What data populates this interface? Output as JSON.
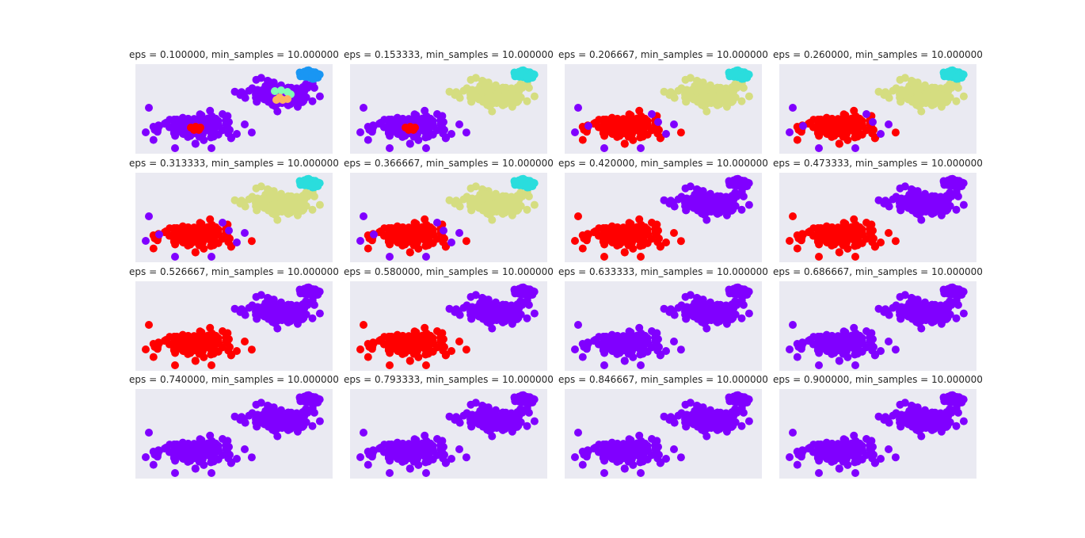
{
  "colors": {
    "background": "#ffffff",
    "panel_background": "#eaeaf2",
    "title_text": "#262626",
    "cluster_palette": [
      "#8000ff",
      "#ff0000",
      "#d5dd80",
      "#2adddd",
      "#80ffb4",
      "#ffb360",
      "#1996f3"
    ]
  },
  "chart_data": {
    "type": "scatter",
    "layout": "grid 4x4",
    "axes_visible": false,
    "grid": false,
    "legend": "none",
    "min_samples": 10,
    "panels": [
      {
        "title": "eps = 0.100000, min_samples = 10.000000",
        "eps": 0.1,
        "clusters": {
          "left_blob": "#8000ff",
          "left_core": "#ff0000",
          "right_blob": "#8000ff",
          "right_core_a": "#80ffb4",
          "right_core_b": "#ffb360",
          "top_right_cloud": "#1996f3"
        }
      },
      {
        "title": "eps = 0.153333, min_samples = 10.000000",
        "eps": 0.153333,
        "clusters": {
          "left_blob": "#8000ff",
          "left_core": "#ff0000",
          "right_blob": "#d5dd80",
          "top_right_cloud": "#2adddd"
        }
      },
      {
        "title": "eps = 0.206667, min_samples = 10.000000",
        "eps": 0.206667,
        "clusters": {
          "left_blob": "#ff0000",
          "left_outliers": "#8000ff",
          "right_blob": "#d5dd80",
          "top_right_cloud": "#2adddd"
        }
      },
      {
        "title": "eps = 0.260000, min_samples = 10.000000",
        "eps": 0.26,
        "clusters": {
          "left_blob": "#ff0000",
          "left_outliers": "#8000ff",
          "right_blob": "#d5dd80",
          "top_right_cloud": "#2adddd"
        }
      },
      {
        "title": "eps = 0.313333, min_samples = 10.000000",
        "eps": 0.313333,
        "clusters": {
          "left_blob": "#ff0000",
          "left_outliers": "#8000ff",
          "right_blob": "#d5dd80",
          "top_right_cloud": "#2adddd"
        }
      },
      {
        "title": "eps = 0.366667, min_samples = 10.000000",
        "eps": 0.366667,
        "clusters": {
          "left_blob": "#ff0000",
          "left_outliers": "#8000ff",
          "right_blob": "#d5dd80",
          "top_right_cloud": "#2adddd"
        }
      },
      {
        "title": "eps = 0.420000, min_samples = 10.000000",
        "eps": 0.42,
        "clusters": {
          "left_blob": "#ff0000",
          "right_blob": "#8000ff",
          "top_right_cloud": "#8000ff"
        }
      },
      {
        "title": "eps = 0.473333, min_samples = 10.000000",
        "eps": 0.473333,
        "clusters": {
          "left_blob": "#ff0000",
          "right_blob": "#8000ff",
          "top_right_cloud": "#8000ff"
        }
      },
      {
        "title": "eps = 0.526667, min_samples = 10.000000",
        "eps": 0.526667,
        "clusters": {
          "left_blob": "#ff0000",
          "right_blob": "#8000ff",
          "top_right_cloud": "#8000ff"
        }
      },
      {
        "title": "eps = 0.580000, min_samples = 10.000000",
        "eps": 0.58,
        "clusters": {
          "left_blob": "#ff0000",
          "right_blob": "#8000ff",
          "top_right_cloud": "#8000ff"
        }
      },
      {
        "title": "eps = 0.633333, min_samples = 10.000000",
        "eps": 0.633333,
        "clusters": {
          "left_blob": "#8000ff",
          "right_blob": "#8000ff",
          "top_right_cloud": "#8000ff"
        }
      },
      {
        "title": "eps = 0.686667, min_samples = 10.000000",
        "eps": 0.686667,
        "clusters": {
          "left_blob": "#8000ff",
          "right_blob": "#8000ff",
          "top_right_cloud": "#8000ff"
        }
      },
      {
        "title": "eps = 0.740000, min_samples = 10.000000",
        "eps": 0.74,
        "clusters": {
          "left_blob": "#8000ff",
          "right_blob": "#8000ff",
          "top_right_cloud": "#8000ff"
        }
      },
      {
        "title": "eps = 0.793333, min_samples = 10.000000",
        "eps": 0.793333,
        "clusters": {
          "left_blob": "#8000ff",
          "right_blob": "#8000ff",
          "top_right_cloud": "#8000ff"
        }
      },
      {
        "title": "eps = 0.846667, min_samples = 10.000000",
        "eps": 0.846667,
        "clusters": {
          "left_blob": "#8000ff",
          "right_blob": "#8000ff",
          "top_right_cloud": "#8000ff"
        }
      },
      {
        "title": "eps = 0.900000, min_samples = 10.000000",
        "eps": 0.9,
        "clusters": {
          "left_blob": "#8000ff",
          "right_blob": "#8000ff",
          "top_right_cloud": "#8000ff"
        }
      }
    ]
  }
}
